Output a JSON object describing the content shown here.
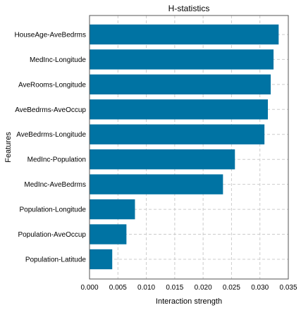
{
  "chart_data": {
    "type": "bar",
    "orientation": "horizontal",
    "title": "H-statistics",
    "xlabel": "Interaction strength",
    "ylabel": "Features",
    "categories": [
      "HouseAge-AveBedrms",
      "MedInc-Longitude",
      "AveRooms-Longitude",
      "AveBedrms-AveOccup",
      "AveBedrms-Longitude",
      "MedInc-Population",
      "MedInc-AveBedrms",
      "Population-Longitude",
      "Population-AveOccup",
      "Population-Latitude"
    ],
    "values": [
      0.0333,
      0.0324,
      0.0319,
      0.0314,
      0.0308,
      0.0256,
      0.0235,
      0.008,
      0.0065,
      0.004
    ],
    "xlim": [
      0,
      0.035
    ],
    "xticks": [
      "0.000",
      "0.005",
      "0.010",
      "0.015",
      "0.020",
      "0.025",
      "0.030",
      "0.035"
    ],
    "grid": true,
    "bar_color": "#0073a3",
    "grid_color": "#cccccc"
  }
}
